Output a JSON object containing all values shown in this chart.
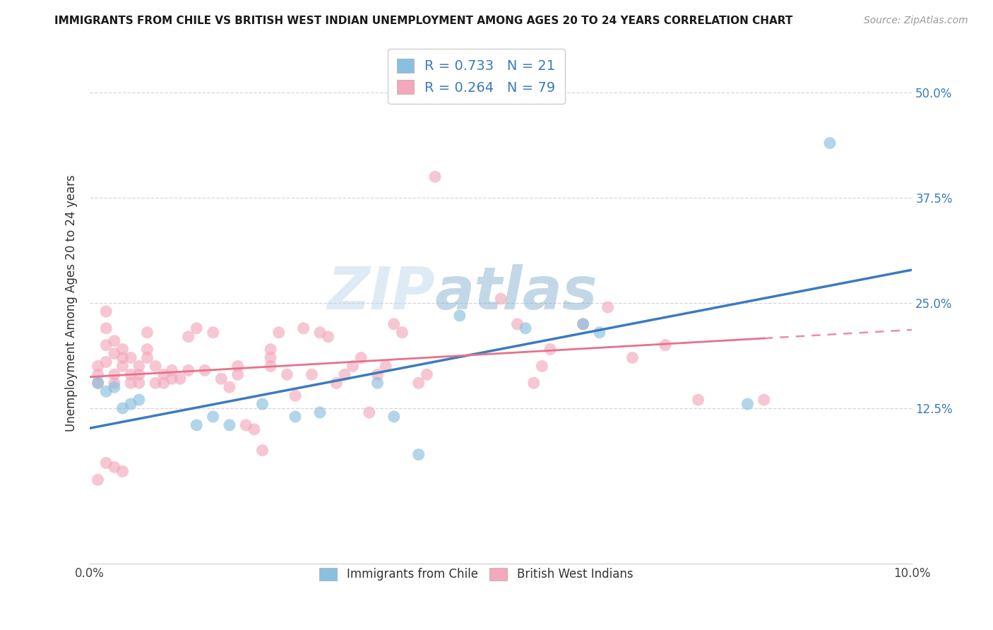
{
  "title": "IMMIGRANTS FROM CHILE VS BRITISH WEST INDIAN UNEMPLOYMENT AMONG AGES 20 TO 24 YEARS CORRELATION CHART",
  "source": "Source: ZipAtlas.com",
  "ylabel": "Unemployment Among Ages 20 to 24 years",
  "xlim": [
    0.0,
    0.1
  ],
  "ylim": [
    -0.06,
    0.56
  ],
  "yticks_right": [
    0.125,
    0.25,
    0.375,
    0.5
  ],
  "ytick_labels_right": [
    "12.5%",
    "25.0%",
    "37.5%",
    "50.0%"
  ],
  "xticks": [
    0.0,
    0.02,
    0.04,
    0.06,
    0.08,
    0.1
  ],
  "xtick_labels": [
    "0.0%",
    "",
    "",
    "",
    "",
    "10.0%"
  ],
  "legend_r1": "R = 0.733",
  "legend_n1": "N = 21",
  "legend_r2": "R = 0.264",
  "legend_n2": "N = 79",
  "color_blue": "#89bfdf",
  "color_pink": "#f4a8bc",
  "color_blue_line": "#3a7bbf",
  "color_pink_line": "#e8718a",
  "color_pink_line_dashed": "#e8718a",
  "watermark_color": "#c8dcee",
  "grid_color": "#d5d5e0",
  "blue_scatter_x": [
    0.001,
    0.002,
    0.003,
    0.004,
    0.005,
    0.006,
    0.013,
    0.015,
    0.017,
    0.021,
    0.025,
    0.028,
    0.035,
    0.037,
    0.04,
    0.045,
    0.053,
    0.06,
    0.062,
    0.08,
    0.09
  ],
  "blue_scatter_y": [
    0.155,
    0.145,
    0.15,
    0.125,
    0.13,
    0.135,
    0.105,
    0.115,
    0.105,
    0.13,
    0.115,
    0.12,
    0.155,
    0.115,
    0.07,
    0.235,
    0.22,
    0.225,
    0.215,
    0.13,
    0.44
  ],
  "pink_scatter_x": [
    0.001,
    0.001,
    0.001,
    0.002,
    0.002,
    0.002,
    0.002,
    0.003,
    0.003,
    0.003,
    0.003,
    0.004,
    0.004,
    0.004,
    0.005,
    0.005,
    0.005,
    0.006,
    0.006,
    0.006,
    0.007,
    0.007,
    0.007,
    0.008,
    0.008,
    0.009,
    0.009,
    0.01,
    0.01,
    0.011,
    0.012,
    0.012,
    0.013,
    0.014,
    0.015,
    0.016,
    0.017,
    0.018,
    0.018,
    0.019,
    0.02,
    0.021,
    0.022,
    0.022,
    0.022,
    0.023,
    0.024,
    0.025,
    0.026,
    0.027,
    0.028,
    0.029,
    0.03,
    0.031,
    0.032,
    0.033,
    0.034,
    0.035,
    0.036,
    0.037,
    0.038,
    0.04,
    0.041,
    0.042,
    0.05,
    0.052,
    0.054,
    0.055,
    0.056,
    0.06,
    0.063,
    0.066,
    0.07,
    0.074,
    0.082,
    0.001,
    0.002,
    0.003,
    0.004
  ],
  "pink_scatter_y": [
    0.155,
    0.165,
    0.175,
    0.18,
    0.2,
    0.22,
    0.24,
    0.155,
    0.165,
    0.19,
    0.205,
    0.175,
    0.185,
    0.195,
    0.155,
    0.165,
    0.185,
    0.155,
    0.165,
    0.175,
    0.185,
    0.195,
    0.215,
    0.155,
    0.175,
    0.155,
    0.165,
    0.16,
    0.17,
    0.16,
    0.17,
    0.21,
    0.22,
    0.17,
    0.215,
    0.16,
    0.15,
    0.165,
    0.175,
    0.105,
    0.1,
    0.075,
    0.175,
    0.185,
    0.195,
    0.215,
    0.165,
    0.14,
    0.22,
    0.165,
    0.215,
    0.21,
    0.155,
    0.165,
    0.175,
    0.185,
    0.12,
    0.165,
    0.175,
    0.225,
    0.215,
    0.155,
    0.165,
    0.4,
    0.255,
    0.225,
    0.155,
    0.175,
    0.195,
    0.225,
    0.245,
    0.185,
    0.2,
    0.135,
    0.135,
    0.04,
    0.06,
    0.055,
    0.05
  ],
  "pink_trend_xmax": 0.082
}
